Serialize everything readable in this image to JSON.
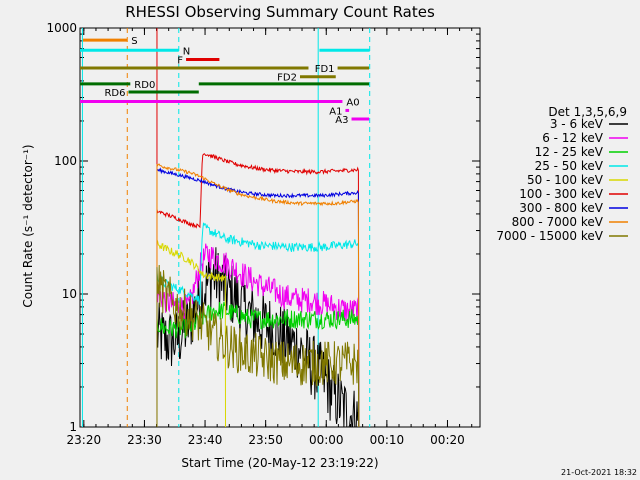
{
  "chart_data": {
    "type": "line",
    "title": "RHESSI Observing Summary Count Rates",
    "xlabel": "Start Time (20-May-12 23:19:22)",
    "ylabel": "Count Rate (s⁻¹ detector⁻¹)",
    "y_scale": "log",
    "ylim": [
      1,
      1000
    ],
    "xlim_minutes": [
      0,
      66
    ],
    "y_ticks": [
      {
        "value": 1,
        "label": "1"
      },
      {
        "value": 10,
        "label": "10"
      },
      {
        "value": 100,
        "label": "100"
      },
      {
        "value": 1000,
        "label": "1000"
      }
    ],
    "x_ticks": [
      {
        "minute": 0.633,
        "label": "23:20"
      },
      {
        "minute": 10.633,
        "label": "23:30"
      },
      {
        "minute": 20.633,
        "label": "23:40"
      },
      {
        "minute": 30.633,
        "label": "23:50"
      },
      {
        "minute": 40.633,
        "label": "00:00"
      },
      {
        "minute": 50.633,
        "label": "00:10"
      },
      {
        "minute": 60.633,
        "label": "00:20"
      }
    ],
    "legend_title": "Det 1,3,5,6,9",
    "legend_position": "right",
    "footer_date": "21-Oct-2021 18:32",
    "series": [
      {
        "name": "3 - 6 keV",
        "color": "#000000",
        "noise": 0.5,
        "points": [
          [
            12.7,
            5
          ],
          [
            14,
            4.5
          ],
          [
            16,
            4.5
          ],
          [
            18,
            6
          ],
          [
            20,
            10
          ],
          [
            22,
            14
          ],
          [
            24,
            11
          ],
          [
            26,
            9
          ],
          [
            28,
            7
          ],
          [
            30,
            6
          ],
          [
            32,
            5.5
          ],
          [
            34,
            4.5
          ],
          [
            36,
            4
          ],
          [
            38,
            3
          ],
          [
            40,
            2.4
          ],
          [
            42,
            1.7
          ],
          [
            44,
            1.3
          ],
          [
            46,
            1.1
          ]
        ]
      },
      {
        "name": "6 - 12 keV",
        "color": "#f000f0",
        "noise": 0.2,
        "points": [
          [
            12.7,
            10.5
          ],
          [
            14,
            9
          ],
          [
            16,
            8
          ],
          [
            18,
            8
          ],
          [
            20,
            17
          ],
          [
            21,
            20
          ],
          [
            24,
            17
          ],
          [
            26,
            15
          ],
          [
            28,
            13
          ],
          [
            30,
            11.5
          ],
          [
            32,
            10.5
          ],
          [
            34,
            9.5
          ],
          [
            36,
            9
          ],
          [
            38,
            9
          ],
          [
            40,
            8.5
          ],
          [
            42,
            8
          ],
          [
            44,
            7.5
          ],
          [
            46,
            7.5
          ]
        ]
      },
      {
        "name": "12 - 25 keV",
        "color": "#00d000",
        "noise": 0.15,
        "points": [
          [
            12.7,
            6
          ],
          [
            14,
            5.5
          ],
          [
            16,
            5.5
          ],
          [
            18,
            5.5
          ],
          [
            20,
            6.5
          ],
          [
            22,
            7.5
          ],
          [
            24,
            7.5
          ],
          [
            26,
            7
          ],
          [
            28,
            6.5
          ],
          [
            30,
            6.5
          ],
          [
            32,
            6.5
          ],
          [
            34,
            6.5
          ],
          [
            36,
            6.5
          ],
          [
            38,
            6.5
          ],
          [
            40,
            6.5
          ],
          [
            42,
            6.5
          ],
          [
            44,
            6.5
          ],
          [
            46,
            6.5
          ]
        ]
      },
      {
        "name": "25 - 50 keV",
        "color": "#00e8e8",
        "noise": 0.07,
        "points": [
          [
            12.7,
            13.5
          ],
          [
            14,
            12
          ],
          [
            16,
            11
          ],
          [
            18,
            10
          ],
          [
            19.8,
            9
          ],
          [
            20.2,
            32
          ],
          [
            22,
            29
          ],
          [
            24,
            26
          ],
          [
            26,
            25
          ],
          [
            28,
            24
          ],
          [
            30,
            23
          ],
          [
            32,
            23
          ],
          [
            34,
            22.5
          ],
          [
            36,
            22.5
          ],
          [
            38,
            22.5
          ],
          [
            40,
            22.5
          ],
          [
            42,
            23
          ],
          [
            44,
            23.5
          ],
          [
            46,
            24
          ]
        ]
      },
      {
        "name": "50 - 100 keV",
        "color": "#d8d800",
        "noise": 0.06,
        "points": [
          [
            12.7,
            24
          ],
          [
            14,
            22
          ],
          [
            16,
            20
          ],
          [
            18,
            18
          ],
          [
            19.8,
            15
          ],
          [
            20.2,
            14
          ],
          [
            24,
            13
          ]
        ]
      },
      {
        "name": "100 - 300 keV",
        "color": "#e00000",
        "noise": 0.03,
        "points": [
          [
            12.7,
            42
          ],
          [
            14,
            40
          ],
          [
            16,
            37
          ],
          [
            18,
            34
          ],
          [
            19.8,
            32
          ],
          [
            20.2,
            115
          ],
          [
            22,
            108
          ],
          [
            24,
            100
          ],
          [
            26,
            94
          ],
          [
            28,
            90
          ],
          [
            30,
            87
          ],
          [
            32,
            85
          ],
          [
            34,
            84
          ],
          [
            36,
            83
          ],
          [
            38,
            83
          ],
          [
            40,
            83
          ],
          [
            42,
            84
          ],
          [
            44,
            85
          ],
          [
            46,
            86
          ]
        ]
      },
      {
        "name": "300 - 800 keV",
        "color": "#0000e0",
        "noise": 0.025,
        "points": [
          [
            12.7,
            86
          ],
          [
            14,
            83
          ],
          [
            16,
            79
          ],
          [
            18,
            75
          ],
          [
            20,
            71
          ],
          [
            22,
            66
          ],
          [
            24,
            62
          ],
          [
            26,
            59
          ],
          [
            28,
            57
          ],
          [
            30,
            56
          ],
          [
            32,
            55
          ],
          [
            34,
            55
          ],
          [
            36,
            55
          ],
          [
            38,
            55
          ],
          [
            40,
            55
          ],
          [
            42,
            56
          ],
          [
            44,
            57
          ],
          [
            46,
            58
          ]
        ]
      },
      {
        "name": "800 - 7000 keV",
        "color": "#f08000",
        "noise": 0.025,
        "points": [
          [
            12.7,
            94
          ],
          [
            14,
            90
          ],
          [
            16,
            86
          ],
          [
            18,
            82
          ],
          [
            20,
            76
          ],
          [
            22,
            68
          ],
          [
            24,
            62
          ],
          [
            26,
            57
          ],
          [
            28,
            54
          ],
          [
            30,
            52
          ],
          [
            32,
            50
          ],
          [
            34,
            49
          ],
          [
            36,
            48
          ],
          [
            38,
            48
          ],
          [
            40,
            48
          ],
          [
            42,
            48
          ],
          [
            44,
            49
          ],
          [
            46,
            50
          ]
        ]
      },
      {
        "name": "7000 - 15000 keV",
        "color": "#807800",
        "noise": 0.35,
        "points": [
          [
            12.7,
            12
          ],
          [
            14,
            10
          ],
          [
            16,
            8
          ],
          [
            18,
            7
          ],
          [
            20,
            6
          ],
          [
            22,
            5
          ],
          [
            24,
            4.2
          ],
          [
            26,
            3.8
          ],
          [
            28,
            3.5
          ],
          [
            30,
            3.3
          ],
          [
            32,
            3.1
          ],
          [
            34,
            3
          ],
          [
            36,
            3
          ],
          [
            38,
            3
          ],
          [
            40,
            3
          ],
          [
            42,
            3
          ],
          [
            44,
            3
          ],
          [
            46,
            3
          ]
        ]
      }
    ],
    "flag_bars": [
      {
        "label": "S",
        "color": "#f08000",
        "level": 810,
        "label_side": "right",
        "segments": [
          [
            0.5,
            7.8
          ]
        ]
      },
      {
        "label": "N",
        "color": "#00e8e8",
        "level": 680,
        "label_side": "right",
        "segments": [
          [
            0,
            16.3
          ],
          [
            39.5,
            47.8
          ]
        ]
      },
      {
        "label": "F",
        "color": "#e00000",
        "level": 580,
        "label_side": "left",
        "segments": [
          [
            17.5,
            23
          ]
        ]
      },
      {
        "label": "FD1",
        "color": "#807800",
        "level": 500,
        "label_side": "left",
        "segments": [
          [
            0,
            37.7
          ],
          [
            42.5,
            47.7
          ]
        ]
      },
      {
        "label": "FD2",
        "color": "#807800",
        "level": 430,
        "label_side": "left",
        "segments": [
          [
            36.3,
            42.2
          ]
        ]
      },
      {
        "label": "RD0",
        "color": "#006c00",
        "level": 380,
        "label_side": "right",
        "segments": [
          [
            0,
            8.3
          ],
          [
            19.6,
            47.7
          ]
        ]
      },
      {
        "label": "RD6",
        "color": "#006c00",
        "level": 330,
        "label_side": "left",
        "segments": [
          [
            8,
            19.6
          ]
        ]
      },
      {
        "label": "A0",
        "color": "#f000f0",
        "level": 280,
        "label_side": "right",
        "segments": [
          [
            0,
            43.3
          ]
        ]
      },
      {
        "label": "A1",
        "color": "#f000f0",
        "level": 240,
        "label_side": "left",
        "segments": [
          [
            43.8,
            44.4
          ]
        ]
      },
      {
        "label": "A3",
        "color": "#f000f0",
        "level": 207,
        "label_side": "left",
        "segments": [
          [
            44.8,
            47.7
          ]
        ]
      }
    ],
    "vertical_markers": [
      {
        "minute": 0.4,
        "color": "#00e8e8",
        "style": "solid"
      },
      {
        "minute": 7.8,
        "color": "#f08000",
        "style": "dashed"
      },
      {
        "minute": 16.3,
        "color": "#00e8e8",
        "style": "dashed"
      },
      {
        "minute": 39.3,
        "color": "#00e8e8",
        "style": "solid"
      },
      {
        "minute": 47.8,
        "color": "#00e8e8",
        "style": "dashed"
      },
      {
        "minute": 12.7,
        "color": "#e00000",
        "style": "solid"
      }
    ]
  }
}
